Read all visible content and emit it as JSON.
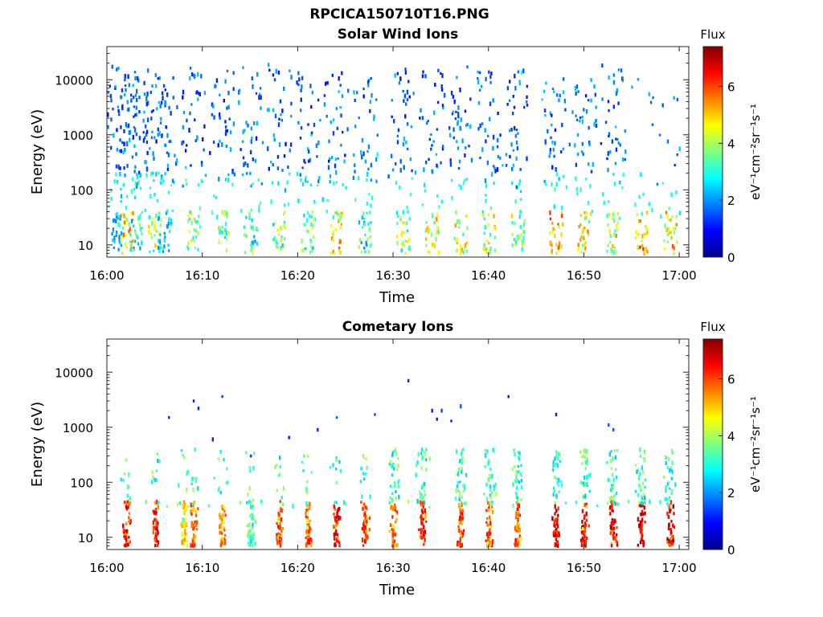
{
  "figure": {
    "title": "RPCICA150710T16.PNG"
  },
  "chart_data": [
    {
      "type": "heatmap",
      "title": "Solar Wind Ions",
      "xlabel": "Time",
      "ylabel": "Energy (eV)",
      "x_ticks": [
        "16:00",
        "16:10",
        "16:20",
        "16:30",
        "16:40",
        "16:50",
        "17:00"
      ],
      "x_range": [
        "16:00",
        "17:01"
      ],
      "y_scale": "log",
      "y_ticks": [
        "10",
        "100",
        "1000",
        "10000"
      ],
      "y_range": [
        6,
        40000
      ],
      "colorbar": {
        "label_top": "Flux",
        "units": "eV⁻¹cm⁻²sr⁻¹s⁻¹",
        "ticks": [
          "0",
          "2",
          "4",
          "6"
        ],
        "range": [
          0,
          7.4
        ],
        "colormap": "jet"
      },
      "bursts": [
        {
          "t": "16:01",
          "low_flux": 3.5
        },
        {
          "t": "16:02",
          "low_flux": 5.8
        },
        {
          "t": "16:03",
          "low_flux": 4.0
        },
        {
          "t": "16:05",
          "low_flux": 5.0
        },
        {
          "t": "16:06",
          "low_flux": 3.0
        },
        {
          "t": "16:09",
          "low_flux": 5.0
        },
        {
          "t": "16:12",
          "low_flux": 5.0
        },
        {
          "t": "16:15",
          "low_flux": 4.5
        },
        {
          "t": "16:18",
          "low_flux": 4.8
        },
        {
          "t": "16:21",
          "low_flux": 4.5
        },
        {
          "t": "16:24",
          "low_flux": 6.0
        },
        {
          "t": "16:27",
          "low_flux": 4.2
        },
        {
          "t": "16:31",
          "low_flux": 5.0
        },
        {
          "t": "16:34",
          "low_flux": 5.5
        },
        {
          "t": "16:37",
          "low_flux": 5.5
        },
        {
          "t": "16:40",
          "low_flux": 5.3
        },
        {
          "t": "16:43",
          "low_flux": 5.0
        },
        {
          "t": "16:47",
          "low_flux": 6.3
        },
        {
          "t": "16:50",
          "low_flux": 5.8
        },
        {
          "t": "16:53",
          "low_flux": 5.5
        },
        {
          "t": "16:56",
          "low_flux": 6.5
        },
        {
          "t": "16:59",
          "low_flux": 6.0
        }
      ],
      "solar_wind_band_eV": [
        100,
        20000
      ]
    },
    {
      "type": "heatmap",
      "title": "Cometary Ions",
      "xlabel": "Time",
      "ylabel": "Energy (eV)",
      "x_ticks": [
        "16:00",
        "16:10",
        "16:20",
        "16:30",
        "16:40",
        "16:50",
        "17:00"
      ],
      "x_range": [
        "16:00",
        "17:01"
      ],
      "y_scale": "log",
      "y_ticks": [
        "10",
        "100",
        "1000",
        "10000"
      ],
      "y_range": [
        6,
        40000
      ],
      "colorbar": {
        "label_top": "Flux",
        "units": "eV⁻¹cm⁻²sr⁻¹s⁻¹",
        "ticks": [
          "0",
          "2",
          "4",
          "6"
        ],
        "range": [
          0,
          7.4
        ],
        "colormap": "jet"
      },
      "bursts": [
        {
          "t": "16:02",
          "peak_flux": 7.0
        },
        {
          "t": "16:05",
          "peak_flux": 7.0
        },
        {
          "t": "16:08",
          "peak_flux": 5.5
        },
        {
          "t": "16:09",
          "peak_flux": 6.5
        },
        {
          "t": "16:12",
          "peak_flux": 6.0
        },
        {
          "t": "16:15",
          "peak_flux": 4.0
        },
        {
          "t": "16:18",
          "peak_flux": 6.5
        },
        {
          "t": "16:21",
          "peak_flux": 6.5
        },
        {
          "t": "16:24",
          "peak_flux": 7.0
        },
        {
          "t": "16:27",
          "peak_flux": 6.5
        },
        {
          "t": "16:30",
          "peak_flux": 6.5
        },
        {
          "t": "16:33",
          "peak_flux": 6.8
        },
        {
          "t": "16:37",
          "peak_flux": 6.8
        },
        {
          "t": "16:40",
          "peak_flux": 6.5
        },
        {
          "t": "16:43",
          "peak_flux": 6.5
        },
        {
          "t": "16:47",
          "peak_flux": 7.2
        },
        {
          "t": "16:50",
          "peak_flux": 7.0
        },
        {
          "t": "16:53",
          "peak_flux": 7.0
        },
        {
          "t": "16:56",
          "peak_flux": 7.3
        },
        {
          "t": "16:59",
          "peak_flux": 7.2
        }
      ],
      "band_eV": [
        8,
        300
      ]
    }
  ]
}
